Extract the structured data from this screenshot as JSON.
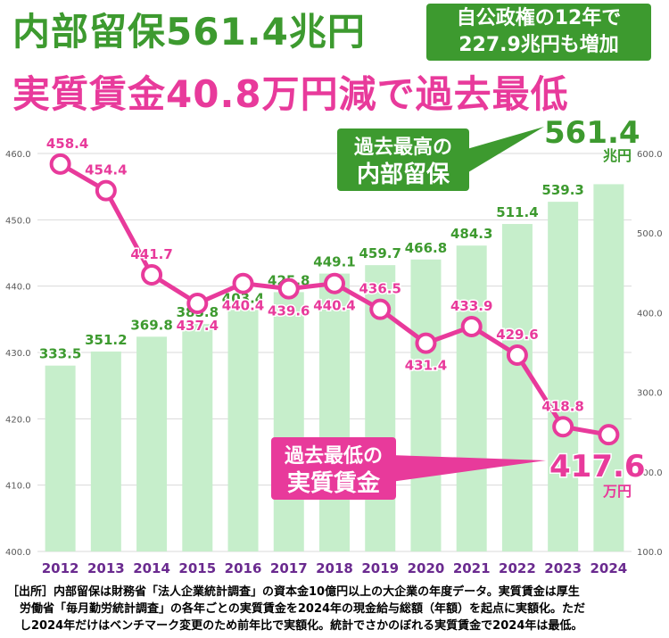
{
  "header": {
    "title_main": "内部留保561.4兆円",
    "sub_line1": "自公政権の12年で",
    "sub_line2": "227.9兆円も増加",
    "title_wage": "実質賃金40.8万円減で過去最低"
  },
  "chart_data": {
    "type": "bar",
    "categories": [
      "2012",
      "2013",
      "2014",
      "2015",
      "2016",
      "2017",
      "2018",
      "2019",
      "2020",
      "2021",
      "2022",
      "2023",
      "2024"
    ],
    "series": [
      {
        "type": "bar",
        "axis": "right",
        "values": [
          333.5,
          351.2,
          369.8,
          385.8,
          403.4,
          425.8,
          449.1,
          459.7,
          466.8,
          484.3,
          511.4,
          539.3,
          561.4
        ],
        "color": "#c6eecb",
        "label_color": "#3d9a2f"
      },
      {
        "type": "line",
        "axis": "left",
        "values": [
          458.4,
          454.4,
          441.7,
          437.4,
          440.4,
          439.6,
          440.4,
          436.5,
          431.4,
          433.9,
          429.6,
          418.8,
          417.6
        ],
        "color": "#e83a9b"
      }
    ],
    "y_left": {
      "lim": [
        400,
        460
      ],
      "ticks": [
        "400.0",
        "410.0",
        "420.0",
        "430.0",
        "440.0",
        "450.0",
        "460.0"
      ]
    },
    "y_right": {
      "lim": [
        100,
        600
      ],
      "ticks": [
        "100.0",
        "200.0",
        "300.0",
        "400.0",
        "500.0",
        "600.0"
      ]
    },
    "grid": true,
    "callout_retained": {
      "line1": "過去最高の",
      "line2": "内部留保",
      "value": "561.4",
      "unit": "兆円",
      "color": "#3d9a2f"
    },
    "callout_wage": {
      "line1": "過去最低の",
      "line2": "実質賃金",
      "value": "417.6",
      "unit": "万円",
      "color": "#e83a9b"
    },
    "x_label_color": "#6a2a8f"
  },
  "footnote": {
    "line1": "［出所］内部留保は財務省「法人企業統計調査」の資本金10億円以上の大企業の年度データ。実質賃金は厚生",
    "line2": "労働省「毎月勤労統計調査」の各年ごとの実質賃金を2024年の現金給与総額（年額）を起点に実額化。ただ",
    "line3": "し2024年だけはベンチマーク変更のため前年比で実額化。統計でさかのぼれる実質賃金で2024年は最低。"
  }
}
